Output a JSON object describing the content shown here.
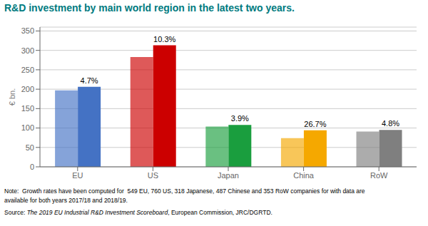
{
  "chart_data": {
    "type": "bar",
    "title": "R&D investment by main world region in the latest two years.",
    "categories": [
      "EU",
      "US",
      "Japan",
      "China",
      "RoW"
    ],
    "series": [
      {
        "colors": [
          "#4472c4",
          "#cc0000",
          "#1a9e3e",
          "#f5a800",
          "#7f7f7f"
        ],
        "values": [
          197,
          283,
          104,
          74,
          91
        ]
      },
      {
        "colors": [
          "#4472c4",
          "#cc0000",
          "#1a9e3e",
          "#f5a800",
          "#7f7f7f"
        ],
        "values": [
          206,
          313,
          108,
          94,
          95
        ]
      }
    ],
    "ylabel": "€ bn.",
    "ylim": [
      0,
      360
    ],
    "yticks": [
      0,
      50,
      100,
      150,
      200,
      250,
      300,
      350
    ],
    "grid": true,
    "annotations": [
      {
        "category": "EU",
        "text": "4.7%"
      },
      {
        "category": "US",
        "text": "10.3%"
      },
      {
        "category": "Japan",
        "text": "3.9%"
      },
      {
        "category": "China",
        "text": "26.7%"
      },
      {
        "category": "RoW",
        "text": "4.8%"
      }
    ],
    "notes": [
      "Note:  Growth rates have been computed for  549 EU, 760 US, 318 Japanese, 487 Chinese and 353 RoW companies for with data are",
      "available for both years 2017/18 and 2018/19."
    ],
    "source": [
      "Source: ",
      "The 2019 EU Industrial R&D Investment Scoreboard",
      ", European Commission, JRC/DGRTD."
    ]
  }
}
